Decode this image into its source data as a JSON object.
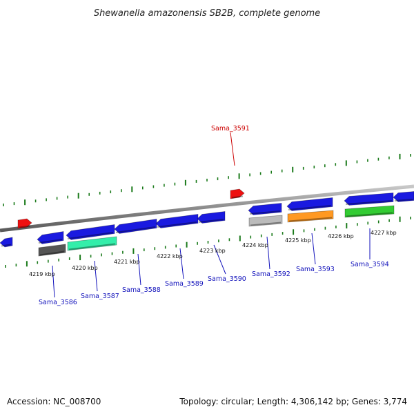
{
  "title": "Shewanella amazonensis SB2B, complete genome",
  "footer": {
    "accession": "Accession: NC_008700",
    "summary": "Topology: circular; Length: 4,306,142 bp; Genes: 3,774"
  },
  "colors": {
    "blue": "#1a1ae0",
    "red": "#ee1111",
    "teal": "#33eeaa",
    "darkgray": "#555555",
    "lightgray": "#bbbbbb",
    "orange": "#ff9922",
    "green": "#33cc33",
    "tick": "#1a7a1a",
    "backbone": "#888888",
    "label_blue": "#1111bb",
    "label_red": "#cc0000"
  },
  "scale_labels": [
    "4219 kbp",
    "4220 kbp",
    "4221 kbp",
    "4222 kbp",
    "4223 kbp",
    "4224 kbp",
    "4225 kbp",
    "4226 kbp",
    "4227 kbp"
  ],
  "gene_labels": [
    {
      "name": "Sama_3591",
      "color": "red"
    },
    {
      "name": "Sama_3586",
      "color": "label_blue"
    },
    {
      "name": "Sama_3587",
      "color": "label_blue"
    },
    {
      "name": "Sama_3588",
      "color": "label_blue"
    },
    {
      "name": "Sama_3589",
      "color": "label_blue"
    },
    {
      "name": "Sama_3590",
      "color": "label_blue"
    },
    {
      "name": "Sama_3592",
      "color": "label_blue"
    },
    {
      "name": "Sama_3593",
      "color": "label_blue"
    },
    {
      "name": "Sama_3594",
      "color": "label_blue"
    }
  ]
}
